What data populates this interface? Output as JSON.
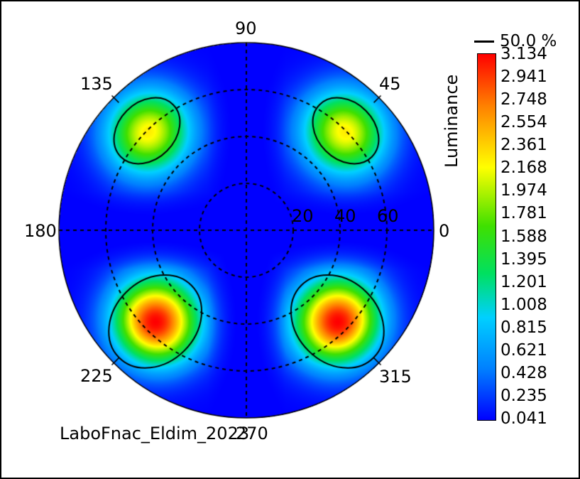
{
  "chart_data": {
    "type": "heatmap",
    "projection": "polar",
    "angle_labels": [
      "90",
      "45",
      "0",
      "315",
      "270",
      "225",
      "180",
      "135"
    ],
    "radial_labels": [
      "20",
      "40",
      "60"
    ],
    "radial_rings": [
      20,
      40,
      60
    ],
    "rmax": 80,
    "colorbar": {
      "label": "Luminance",
      "ticks": [
        "3.134",
        "2.941",
        "2.748",
        "2.554",
        "2.361",
        "2.168",
        "1.974",
        "1.781",
        "1.588",
        "1.395",
        "1.201",
        "1.008",
        "0.815",
        "0.621",
        "0.428",
        "0.235",
        "0.041"
      ],
      "min": 0.041,
      "max": 3.134
    },
    "contour_label": "50.0 %",
    "lobes": [
      {
        "azimuth": 45,
        "polar": 60,
        "peak": 2.25
      },
      {
        "azimuth": 135,
        "polar": 60,
        "peak": 2.25
      },
      {
        "azimuth": 225,
        "polar": 55,
        "peak": 3.134
      },
      {
        "azimuth": 315,
        "polar": 55,
        "peak": 3.134
      }
    ]
  },
  "footer": {
    "text": "LaboFnac_Eldim_2023"
  }
}
